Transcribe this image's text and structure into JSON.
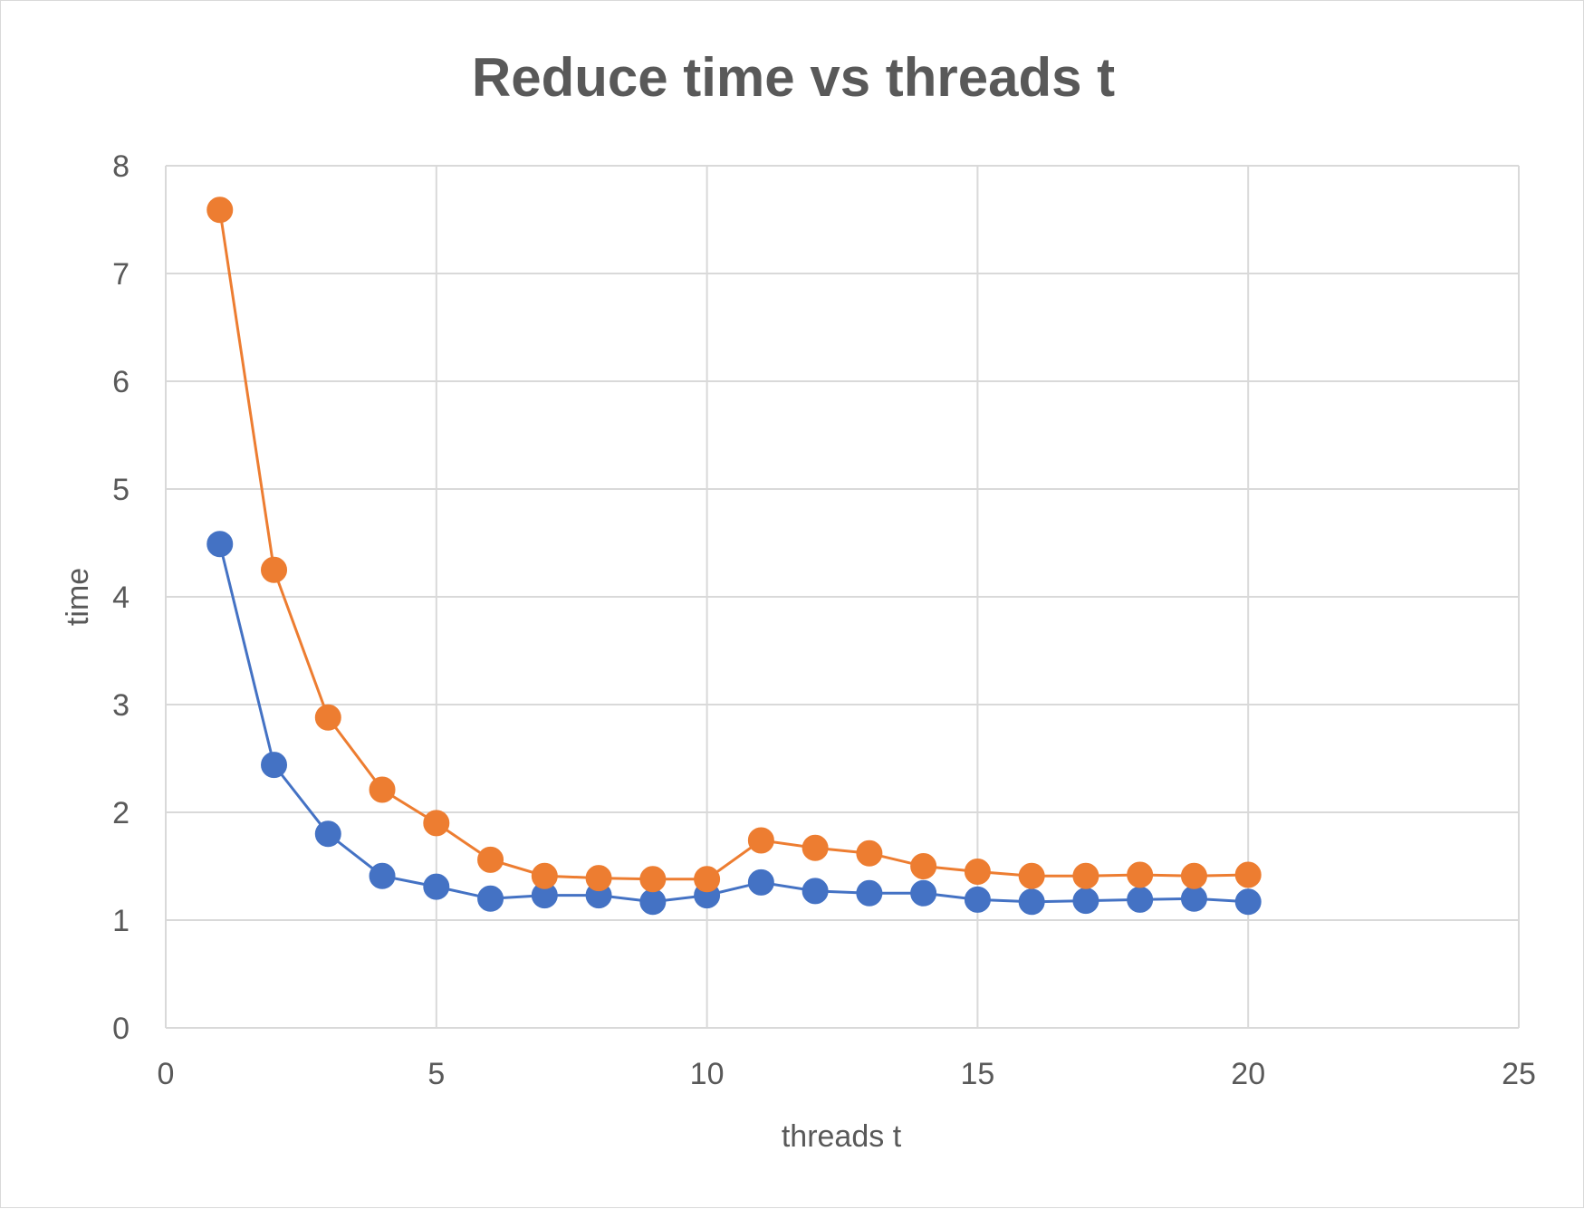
{
  "chart_data": {
    "type": "scatter",
    "title": "Reduce time vs threads t",
    "xlabel": "threads t",
    "ylabel": "time",
    "xlim": [
      0,
      25
    ],
    "ylim": [
      0,
      8
    ],
    "x_ticks": [
      0,
      5,
      10,
      15,
      20,
      25
    ],
    "y_ticks": [
      0,
      1,
      2,
      3,
      4,
      5,
      6,
      7,
      8
    ],
    "grid": true,
    "legend": "none",
    "series": [
      {
        "color": "#4472c4",
        "x": [
          1,
          2,
          3,
          4,
          5,
          6,
          7,
          8,
          9,
          10,
          11,
          12,
          13,
          14,
          15,
          16,
          17,
          18,
          19,
          20
        ],
        "y": [
          4.49,
          2.44,
          1.8,
          1.41,
          1.31,
          1.2,
          1.23,
          1.23,
          1.17,
          1.23,
          1.35,
          1.27,
          1.25,
          1.25,
          1.19,
          1.17,
          1.18,
          1.19,
          1.2,
          1.17
        ]
      },
      {
        "color": "#ed7d31",
        "x": [
          1,
          2,
          3,
          4,
          5,
          6,
          7,
          8,
          9,
          10,
          11,
          12,
          13,
          14,
          15,
          16,
          17,
          18,
          19,
          20
        ],
        "y": [
          7.59,
          4.25,
          2.88,
          2.21,
          1.9,
          1.56,
          1.41,
          1.39,
          1.38,
          1.38,
          1.74,
          1.67,
          1.62,
          1.5,
          1.45,
          1.41,
          1.41,
          1.42,
          1.41,
          1.42
        ]
      }
    ]
  }
}
